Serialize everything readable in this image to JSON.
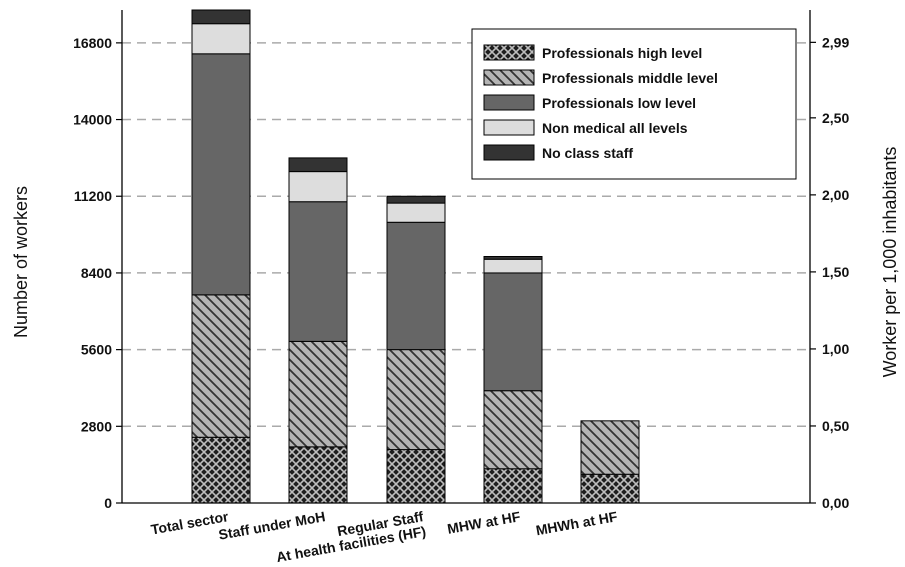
{
  "chart_data": {
    "type": "bar",
    "stacked": true,
    "categories": [
      "Total  sector",
      "Staff under MoH",
      "Regular Staff\nAt health facilities (HF)",
      "MHW at HF",
      "MHWh at HF"
    ],
    "series": [
      {
        "name": "Professionals high level",
        "values": [
          2400,
          2050,
          1950,
          1250,
          1050
        ],
        "color": "#222222",
        "pattern": "crosshatch"
      },
      {
        "name": "Professionals middle level",
        "values": [
          5200,
          3850,
          3650,
          2850,
          1950
        ],
        "color": "#aaaaaa",
        "pattern": "diagonal"
      },
      {
        "name": "Professionals low level",
        "values": [
          8800,
          5100,
          4650,
          4300,
          0
        ],
        "color": "#666666",
        "pattern": "solid"
      },
      {
        "name": "Non medical all levels",
        "values": [
          1100,
          1100,
          700,
          500,
          0
        ],
        "color": "#dddddd",
        "pattern": "solid"
      },
      {
        "name": "No class staff",
        "values": [
          500,
          500,
          250,
          100,
          0
        ],
        "color": "#333333",
        "pattern": "solid"
      }
    ],
    "ylabel": "Number of workers",
    "y2label": "Worker per 1,000 inhabitants",
    "ylim": [
      0,
      18000
    ],
    "yticks": [
      0,
      2800,
      5600,
      8400,
      11200,
      14000,
      16800
    ],
    "y2lim": [
      0,
      3.2
    ],
    "y2ticks": [
      "0,00",
      "0,50",
      "1,00",
      "1,50",
      "2,00",
      "2,50",
      "2,99"
    ],
    "grid": "horizontal dashed",
    "legend_position": "top-right"
  }
}
